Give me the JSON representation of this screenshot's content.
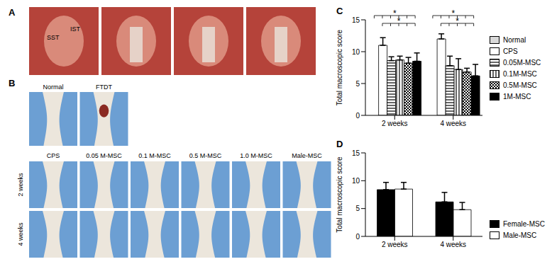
{
  "panels": {
    "A": {
      "label": "A",
      "photo_labels": [
        "SST",
        "IST"
      ]
    },
    "B": {
      "label": "B",
      "top_row": [
        "Normal",
        "FTDT"
      ],
      "columns": [
        "CPS",
        "0.05 M-MSC",
        "0.1 M-MSC",
        "0.5 M-MSC",
        "1.0 M-MSC",
        "Male-MSC"
      ],
      "rows": [
        "2 weeks",
        "4 weeks"
      ]
    }
  },
  "chart_data": [
    {
      "type": "bar",
      "panel_label": "C",
      "categories": [
        "2 weeks",
        "4 weeks"
      ],
      "y_label": "Total macroscopic score",
      "ylim": [
        0,
        15
      ],
      "yticks": [
        0,
        5,
        10,
        15
      ],
      "legend": "right",
      "series": [
        {
          "name": "Normal",
          "color": "#d9d9d9",
          "values": [
            0,
            0
          ],
          "errors": [
            0,
            0
          ]
        },
        {
          "name": "CPS",
          "color": "#ffffff",
          "values": [
            11,
            12
          ],
          "errors": [
            1.2,
            0.8
          ]
        },
        {
          "name": "0.05M-MSC",
          "color": "#000000",
          "values": [
            8.6,
            7.8
          ],
          "errors": [
            0.6,
            1.5
          ]
        },
        {
          "name": "0.1M-MSC",
          "color": "#000000",
          "values": [
            8.7,
            7.2
          ],
          "errors": [
            0.6,
            1.7
          ]
        },
        {
          "name": "0.5M-MSC",
          "color": "#000000",
          "values": [
            8.2,
            6.8
          ],
          "errors": [
            0.9,
            0.6
          ]
        },
        {
          "name": "1M-MSC",
          "color": "#000000",
          "values": [
            8.5,
            6.2
          ],
          "errors": [
            1.3,
            1.8
          ]
        }
      ],
      "annotations": [
        {
          "text": "*",
          "category": "2 weeks",
          "from": "Normal",
          "to": "1M-MSC"
        },
        {
          "text": "*",
          "category": "2 weeks",
          "from": "CPS",
          "to": "1M-MSC"
        },
        {
          "text": "*",
          "category": "4 weeks",
          "from": "Normal",
          "to": "1M-MSC"
        },
        {
          "text": "*",
          "category": "4 weeks",
          "from": "CPS",
          "to": "1M-MSC"
        }
      ]
    },
    {
      "type": "bar",
      "panel_label": "D",
      "categories": [
        "2 weeks",
        "4 weeks"
      ],
      "y_label": "Total macroscopic score",
      "ylim": [
        0,
        15
      ],
      "yticks": [
        0,
        5,
        10,
        15
      ],
      "legend": "right",
      "series": [
        {
          "name": "Female-MSC",
          "color": "#000000",
          "values": [
            8.4,
            6.2
          ],
          "errors": [
            1.3,
            1.7
          ]
        },
        {
          "name": "Male-MSC",
          "color": "#ffffff",
          "values": [
            8.5,
            4.8
          ],
          "errors": [
            1.2,
            1.3
          ]
        }
      ]
    }
  ]
}
